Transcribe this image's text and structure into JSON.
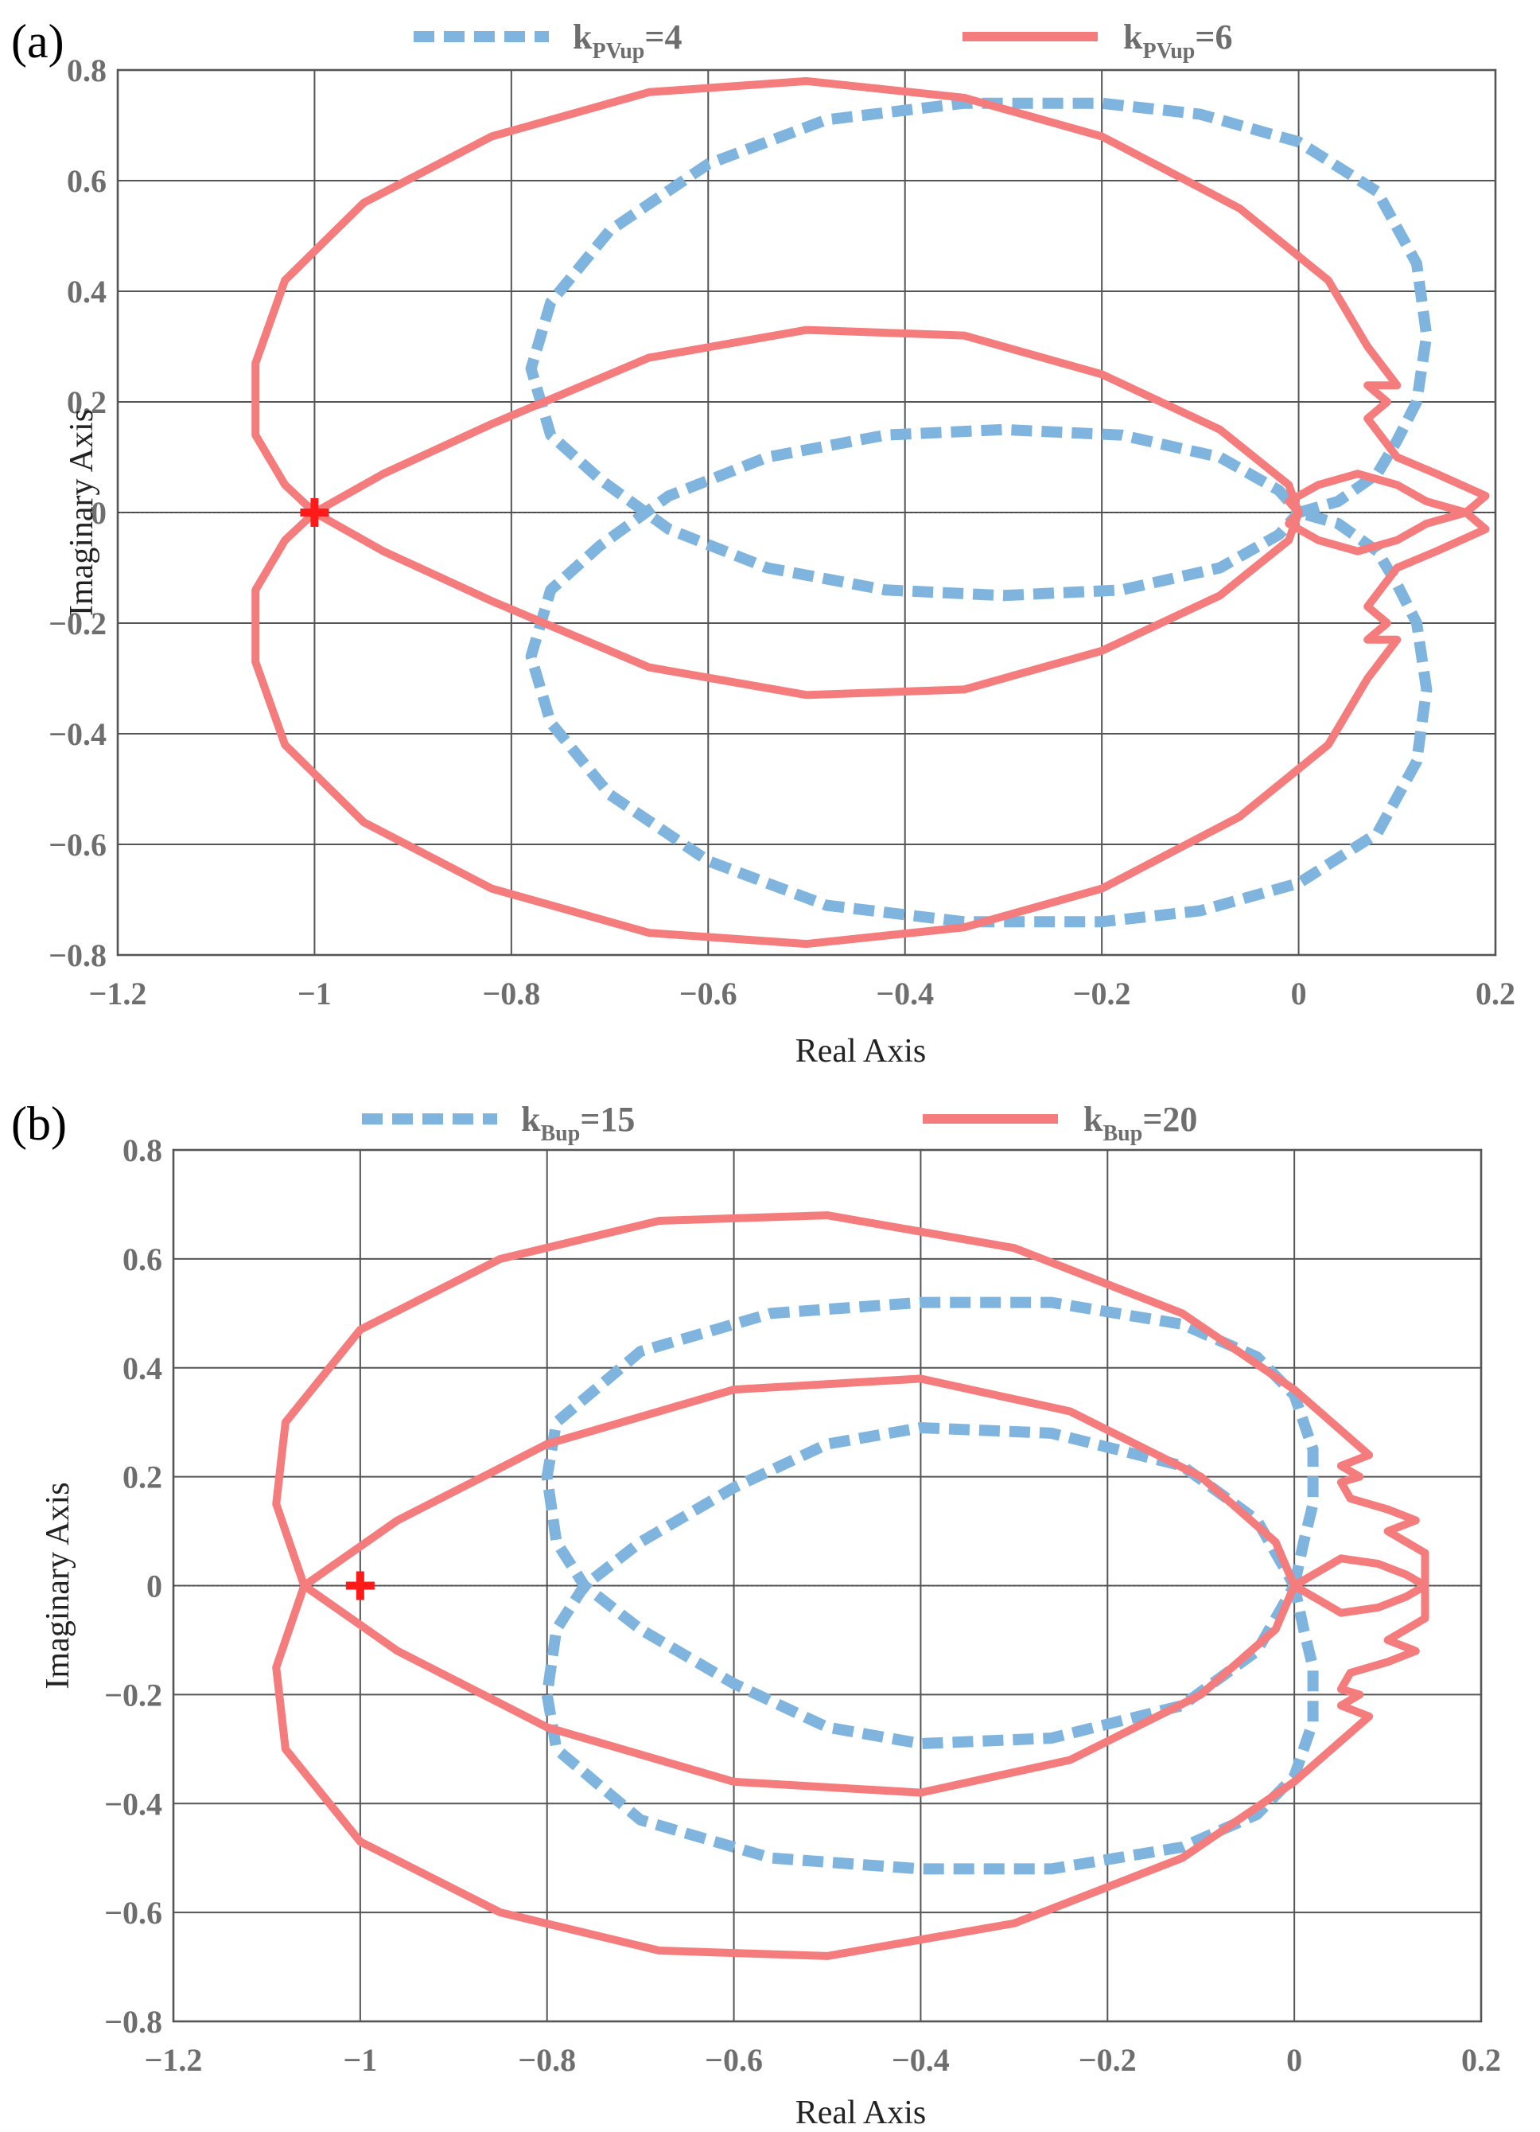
{
  "chart_data": [
    {
      "type": "line",
      "chart_kind": "nyquist",
      "panel_label": "(a)",
      "xlabel": "Real Axis",
      "ylabel": "Imaginary Axis",
      "xlim": [
        -1.2,
        0.2
      ],
      "ylim": [
        -0.8,
        0.8
      ],
      "xticks": [
        -1.2,
        -1,
        -0.8,
        -0.6,
        -0.4,
        -0.2,
        0,
        0.2
      ],
      "yticks": [
        -0.8,
        -0.6,
        -0.4,
        -0.2,
        0,
        0.2,
        0.4,
        0.6,
        0.8
      ],
      "xtick_labels": [
        "−1.2",
        "−1",
        "−0.8",
        "−0.6",
        "−0.4",
        "−0.2",
        "0",
        "0.2"
      ],
      "ytick_labels": [
        "−0.8",
        "−0.6",
        "−0.4",
        "−0.2",
        "0",
        "0.2",
        "0.4",
        "0.6",
        "0.8"
      ],
      "grid": true,
      "critical_point": [
        -1,
        0
      ],
      "legend": [
        {
          "pre": "k",
          "sub": "PVup",
          "post": "=4",
          "style": "dashed",
          "color": "#7eb4de"
        },
        {
          "pre": "k",
          "sub": "PVup",
          "post": "=6",
          "style": "solid",
          "color": "#f47c7c"
        }
      ],
      "series": [
        {
          "name": "kPVup=4",
          "style": "dashed",
          "color": "#7eb4de",
          "points": [
            [
              0,
              0
            ],
            [
              0.04,
              0.02
            ],
            [
              0.08,
              0.07
            ],
            [
              0.1,
              0.13
            ],
            [
              0.12,
              0.2
            ],
            [
              0.13,
              0.32
            ],
            [
              0.12,
              0.45
            ],
            [
              0.08,
              0.58
            ],
            [
              0.0,
              0.67
            ],
            [
              -0.1,
              0.72
            ],
            [
              -0.2,
              0.74
            ],
            [
              -0.34,
              0.74
            ],
            [
              -0.48,
              0.71
            ],
            [
              -0.6,
              0.63
            ],
            [
              -0.7,
              0.51
            ],
            [
              -0.76,
              0.38
            ],
            [
              -0.78,
              0.26
            ],
            [
              -0.76,
              0.14
            ],
            [
              -0.71,
              0.06
            ],
            [
              -0.64,
              -0.03
            ],
            [
              -0.54,
              -0.1
            ],
            [
              -0.42,
              -0.14
            ],
            [
              -0.3,
              -0.15
            ],
            [
              -0.18,
              -0.14
            ],
            [
              -0.08,
              -0.1
            ],
            [
              -0.02,
              -0.04
            ],
            [
              0,
              0
            ],
            [
              -0.02,
              0.04
            ],
            [
              -0.08,
              0.1
            ],
            [
              -0.18,
              0.14
            ],
            [
              -0.3,
              0.15
            ],
            [
              -0.42,
              0.14
            ],
            [
              -0.54,
              0.1
            ],
            [
              -0.64,
              0.03
            ],
            [
              -0.71,
              -0.06
            ],
            [
              -0.76,
              -0.14
            ],
            [
              -0.78,
              -0.26
            ],
            [
              -0.76,
              -0.38
            ],
            [
              -0.7,
              -0.51
            ],
            [
              -0.6,
              -0.63
            ],
            [
              -0.48,
              -0.71
            ],
            [
              -0.34,
              -0.74
            ],
            [
              -0.2,
              -0.74
            ],
            [
              -0.1,
              -0.72
            ],
            [
              0.0,
              -0.67
            ],
            [
              0.08,
              -0.58
            ],
            [
              0.12,
              -0.45
            ],
            [
              0.13,
              -0.32
            ],
            [
              0.12,
              -0.2
            ],
            [
              0.1,
              -0.13
            ],
            [
              0.08,
              -0.07
            ],
            [
              0.04,
              -0.02
            ],
            [
              0,
              0
            ]
          ]
        },
        {
          "name": "kPVup=6",
          "style": "solid",
          "color": "#f47c7c",
          "points": [
            [
              0.17,
              0
            ],
            [
              0.19,
              0.03
            ],
            [
              0.14,
              0.07
            ],
            [
              0.1,
              0.1
            ],
            [
              0.07,
              0.17
            ],
            [
              0.09,
              0.2
            ],
            [
              0.07,
              0.23
            ],
            [
              0.1,
              0.23
            ],
            [
              0.07,
              0.3
            ],
            [
              0.03,
              0.42
            ],
            [
              -0.06,
              0.55
            ],
            [
              -0.2,
              0.68
            ],
            [
              -0.34,
              0.75
            ],
            [
              -0.5,
              0.78
            ],
            [
              -0.66,
              0.76
            ],
            [
              -0.82,
              0.68
            ],
            [
              -0.95,
              0.56
            ],
            [
              -1.03,
              0.42
            ],
            [
              -1.06,
              0.27
            ],
            [
              -1.06,
              0.14
            ],
            [
              -1.03,
              0.05
            ],
            [
              -1.0,
              0
            ],
            [
              -0.93,
              0.07
            ],
            [
              -0.82,
              0.16
            ],
            [
              -0.66,
              0.28
            ],
            [
              -0.5,
              0.33
            ],
            [
              -0.34,
              0.32
            ],
            [
              -0.2,
              0.25
            ],
            [
              -0.08,
              0.15
            ],
            [
              -0.01,
              0.05
            ],
            [
              0.0,
              0
            ],
            [
              -0.01,
              0.02
            ],
            [
              0.02,
              0.05
            ],
            [
              0.06,
              0.07
            ],
            [
              0.1,
              0.05
            ],
            [
              0.13,
              0.02
            ],
            [
              0.17,
              0
            ],
            [
              0.19,
              -0.03
            ],
            [
              0.14,
              -0.07
            ],
            [
              0.1,
              -0.1
            ],
            [
              0.07,
              -0.17
            ],
            [
              0.09,
              -0.2
            ],
            [
              0.07,
              -0.23
            ],
            [
              0.1,
              -0.23
            ],
            [
              0.07,
              -0.3
            ],
            [
              0.03,
              -0.42
            ],
            [
              -0.06,
              -0.55
            ],
            [
              -0.2,
              -0.68
            ],
            [
              -0.34,
              -0.75
            ],
            [
              -0.5,
              -0.78
            ],
            [
              -0.66,
              -0.76
            ],
            [
              -0.82,
              -0.68
            ],
            [
              -0.95,
              -0.56
            ],
            [
              -1.03,
              -0.42
            ],
            [
              -1.06,
              -0.27
            ],
            [
              -1.06,
              -0.14
            ],
            [
              -1.03,
              -0.05
            ],
            [
              -1.0,
              0
            ],
            [
              -0.93,
              -0.07
            ],
            [
              -0.82,
              -0.16
            ],
            [
              -0.66,
              -0.28
            ],
            [
              -0.5,
              -0.33
            ],
            [
              -0.34,
              -0.32
            ],
            [
              -0.2,
              -0.25
            ],
            [
              -0.08,
              -0.15
            ],
            [
              -0.01,
              -0.05
            ],
            [
              0.0,
              0
            ],
            [
              -0.01,
              -0.02
            ],
            [
              0.02,
              -0.05
            ],
            [
              0.06,
              -0.07
            ],
            [
              0.1,
              -0.05
            ],
            [
              0.13,
              -0.02
            ],
            [
              0.17,
              0
            ]
          ]
        }
      ]
    },
    {
      "type": "line",
      "chart_kind": "nyquist",
      "panel_label": "(b)",
      "xlabel": "Real Axis",
      "ylabel": "Imaginary Axis",
      "xlim": [
        -1.2,
        0.2
      ],
      "ylim": [
        -0.8,
        0.8
      ],
      "xticks": [
        -1.2,
        -1,
        -0.8,
        -0.6,
        -0.4,
        -0.2,
        0,
        0.2
      ],
      "yticks": [
        -0.8,
        -0.6,
        -0.4,
        -0.2,
        0,
        0.2,
        0.4,
        0.6,
        0.8
      ],
      "xtick_labels": [
        "−1.2",
        "−1",
        "−0.8",
        "−0.6",
        "−0.4",
        "−0.2",
        "0",
        "0.2"
      ],
      "ytick_labels": [
        "−0.8",
        "−0.6",
        "−0.4",
        "−0.2",
        "0",
        "0.2",
        "0.4",
        "0.6",
        "0.8"
      ],
      "grid": true,
      "critical_point": [
        -1,
        0
      ],
      "legend": [
        {
          "pre": "k",
          "sub": "Bup",
          "post": "=15",
          "style": "dashed",
          "color": "#7eb4de"
        },
        {
          "pre": "k",
          "sub": "Bup",
          "post": "=20",
          "style": "solid",
          "color": "#f47c7c"
        }
      ],
      "series": [
        {
          "name": "kBup=15",
          "style": "dashed",
          "color": "#7eb4de",
          "points": [
            [
              0,
              0
            ],
            [
              0.01,
              0.08
            ],
            [
              0.02,
              0.15
            ],
            [
              0.02,
              0.25
            ],
            [
              0.0,
              0.35
            ],
            [
              -0.04,
              0.42
            ],
            [
              -0.12,
              0.48
            ],
            [
              -0.26,
              0.52
            ],
            [
              -0.4,
              0.52
            ],
            [
              -0.56,
              0.5
            ],
            [
              -0.7,
              0.43
            ],
            [
              -0.79,
              0.3
            ],
            [
              -0.8,
              0.2
            ],
            [
              -0.79,
              0.08
            ],
            [
              -0.76,
              0.0
            ],
            [
              -0.7,
              -0.08
            ],
            [
              -0.6,
              -0.18
            ],
            [
              -0.5,
              -0.26
            ],
            [
              -0.4,
              -0.29
            ],
            [
              -0.26,
              -0.28
            ],
            [
              -0.12,
              -0.22
            ],
            [
              -0.04,
              -0.12
            ],
            [
              0,
              0
            ],
            [
              -0.04,
              0.12
            ],
            [
              -0.12,
              0.22
            ],
            [
              -0.26,
              0.28
            ],
            [
              -0.4,
              0.29
            ],
            [
              -0.5,
              0.26
            ],
            [
              -0.6,
              0.18
            ],
            [
              -0.7,
              0.08
            ],
            [
              -0.76,
              0.0
            ],
            [
              -0.79,
              -0.08
            ],
            [
              -0.8,
              -0.2
            ],
            [
              -0.79,
              -0.3
            ],
            [
              -0.7,
              -0.43
            ],
            [
              -0.56,
              -0.5
            ],
            [
              -0.4,
              -0.52
            ],
            [
              -0.26,
              -0.52
            ],
            [
              -0.12,
              -0.48
            ],
            [
              -0.04,
              -0.42
            ],
            [
              0.0,
              -0.35
            ],
            [
              0.02,
              -0.25
            ],
            [
              0.02,
              -0.15
            ],
            [
              0.01,
              -0.08
            ],
            [
              0,
              0
            ]
          ]
        },
        {
          "name": "kBup=20",
          "style": "solid",
          "color": "#f47c7c",
          "points": [
            [
              0,
              0
            ],
            [
              0.05,
              0.05
            ],
            [
              0.09,
              0.04
            ],
            [
              0.12,
              0.02
            ],
            [
              0.14,
              0.0
            ],
            [
              0.14,
              -0.06
            ],
            [
              0.1,
              -0.1
            ],
            [
              0.13,
              -0.12
            ],
            [
              0.1,
              -0.14
            ],
            [
              0.06,
              -0.16
            ],
            [
              0.05,
              -0.19
            ],
            [
              0.07,
              -0.2
            ],
            [
              0.05,
              -0.22
            ],
            [
              0.08,
              -0.24
            ],
            [
              0.0,
              -0.36
            ],
            [
              -0.12,
              -0.5
            ],
            [
              -0.3,
              -0.62
            ],
            [
              -0.5,
              -0.68
            ],
            [
              -0.68,
              -0.67
            ],
            [
              -0.85,
              -0.6
            ],
            [
              -1.0,
              -0.47
            ],
            [
              -1.08,
              -0.3
            ],
            [
              -1.09,
              -0.15
            ],
            [
              -1.06,
              0
            ],
            [
              -0.96,
              0.12
            ],
            [
              -0.8,
              0.26
            ],
            [
              -0.6,
              0.36
            ],
            [
              -0.4,
              0.38
            ],
            [
              -0.24,
              0.32
            ],
            [
              -0.1,
              0.2
            ],
            [
              -0.02,
              0.08
            ],
            [
              0,
              0
            ],
            [
              -0.02,
              -0.08
            ],
            [
              -0.1,
              -0.2
            ],
            [
              -0.24,
              -0.32
            ],
            [
              -0.4,
              -0.38
            ],
            [
              -0.6,
              -0.36
            ],
            [
              -0.8,
              -0.26
            ],
            [
              -0.96,
              -0.12
            ],
            [
              -1.06,
              0
            ],
            [
              -1.09,
              0.15
            ],
            [
              -1.08,
              0.3
            ],
            [
              -1.0,
              0.47
            ],
            [
              -0.85,
              0.6
            ],
            [
              -0.68,
              0.67
            ],
            [
              -0.5,
              0.68
            ],
            [
              -0.3,
              0.62
            ],
            [
              -0.12,
              0.5
            ],
            [
              0.0,
              0.36
            ],
            [
              0.08,
              0.24
            ],
            [
              0.05,
              0.22
            ],
            [
              0.07,
              0.2
            ],
            [
              0.05,
              0.19
            ],
            [
              0.06,
              0.16
            ],
            [
              0.1,
              0.14
            ],
            [
              0.13,
              0.12
            ],
            [
              0.1,
              0.1
            ],
            [
              0.14,
              0.06
            ],
            [
              0.14,
              0.0
            ],
            [
              0.12,
              -0.02
            ],
            [
              0.09,
              -0.04
            ],
            [
              0.05,
              -0.05
            ],
            [
              0,
              0
            ]
          ]
        }
      ]
    }
  ]
}
